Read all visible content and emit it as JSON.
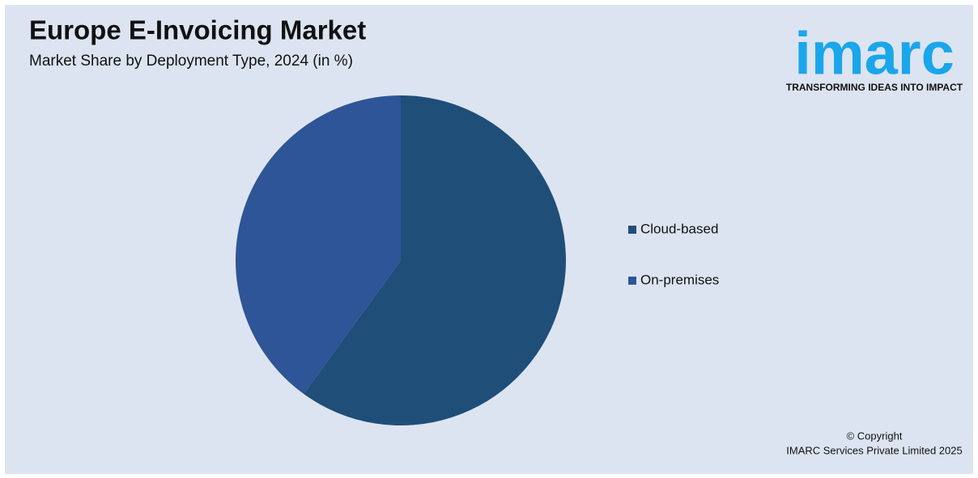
{
  "chart_data": {
    "type": "pie",
    "title": "Europe E-Invoicing Market",
    "subtitle": "Market Share by Deployment Type, 2024 (in %)",
    "categories": [
      "Cloud-based",
      "On-premises"
    ],
    "values": [
      60,
      40
    ],
    "colors": [
      "#1f4e79",
      "#2e5597"
    ]
  },
  "logo": {
    "text": "imarc",
    "tagline": "TRANSFORMING IDEAS INTO IMPACT"
  },
  "copyright": [
    "© Copyright",
    "IMARC Services Private Limited 2025"
  ]
}
